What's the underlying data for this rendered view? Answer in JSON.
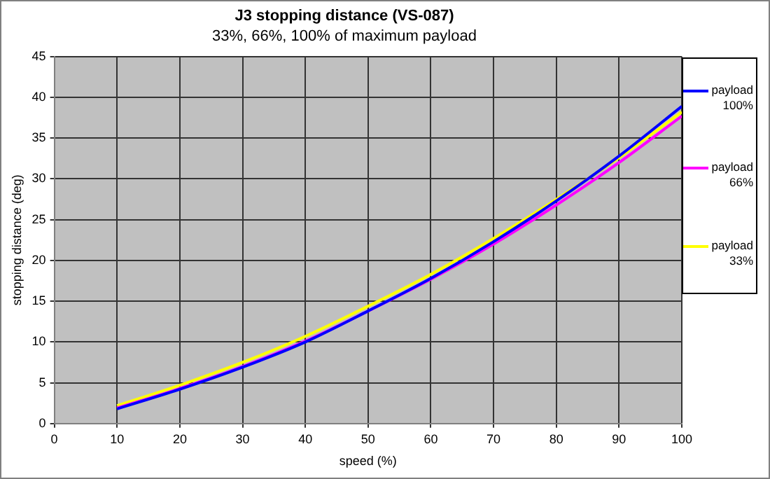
{
  "chart_data": {
    "type": "line",
    "title": "J3 stopping distance (VS-087)",
    "subtitle": "33%, 66%, 100% of maximum payload",
    "xlabel": "speed (%)",
    "ylabel": "stopping distance (deg)",
    "x": [
      10,
      20,
      30,
      40,
      50,
      60,
      70,
      80,
      90,
      100
    ],
    "series": [
      {
        "name": "payload 100%",
        "color": "#0000ff",
        "values": [
          1.8,
          4.2,
          6.9,
          10.0,
          13.8,
          17.8,
          22.3,
          27.3,
          32.8,
          38.9
        ]
      },
      {
        "name": "payload 66%",
        "color": "#ff00ff",
        "values": [
          1.9,
          4.3,
          7.0,
          10.1,
          13.8,
          17.7,
          22.0,
          26.8,
          32.0,
          37.7
        ]
      },
      {
        "name": "payload 33%",
        "color": "#ffff00",
        "values": [
          2.2,
          4.7,
          7.5,
          10.7,
          14.4,
          18.3,
          22.7,
          27.5,
          32.6,
          38.2
        ]
      }
    ],
    "xlim": [
      0,
      100
    ],
    "xticks": [
      0,
      10,
      20,
      30,
      40,
      50,
      60,
      70,
      80,
      90,
      100
    ],
    "ylim": [
      0,
      45
    ],
    "yticks": [
      0,
      5,
      10,
      15,
      20,
      25,
      30,
      35,
      40,
      45
    ],
    "grid": true,
    "legend": "right",
    "marker": "none",
    "line_style": "solid"
  }
}
